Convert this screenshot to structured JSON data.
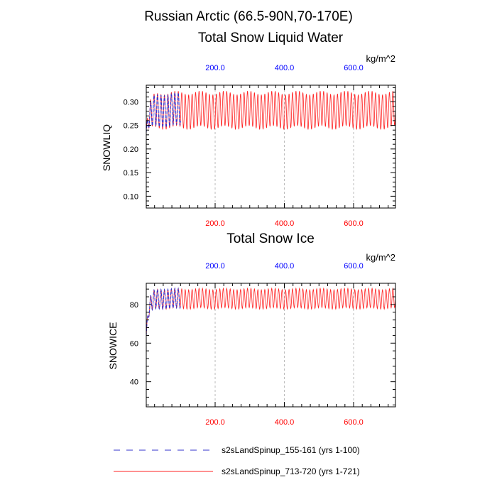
{
  "figure_title": "Russian Arctic (66.5-90N,70-170E)",
  "colors": {
    "series1": "#3333cc",
    "series2": "#ff2222",
    "top_axis": "#0000ff",
    "bottom_axis": "#ff0000",
    "grid": "#bbbbbb"
  },
  "legend": {
    "position": "bottom",
    "items": [
      {
        "label": "s2sLandSpinup_155-161 (yrs 1-100)",
        "style": "dashed",
        "color": "#3333cc"
      },
      {
        "label": "s2sLandSpinup_713-720 (yrs 1-721)",
        "style": "solid",
        "color": "#ff2222"
      }
    ]
  },
  "chart_data": [
    {
      "type": "line",
      "title": "Total Snow Liquid Water",
      "units": "kg/m^2",
      "ylabel": "SNOWLIQ",
      "xlim": [
        1,
        721
      ],
      "ylim": [
        0.075,
        0.335
      ],
      "yticks": [
        0.1,
        0.15,
        0.2,
        0.25,
        0.3
      ],
      "ytick_labels": [
        "0.10",
        "0.15",
        "0.20",
        "0.25",
        "0.30"
      ],
      "top_xticks": [
        200,
        400,
        600
      ],
      "top_xtick_labels": [
        "200.0",
        "400.0",
        "600.0"
      ],
      "bottom_xticks": [
        200,
        400,
        600
      ],
      "bottom_xtick_labels": [
        "200.0",
        "400.0",
        "600.0"
      ],
      "grid_x": true,
      "series": [
        {
          "name": "s2sLandSpinup_155-161 (yrs 1-100)",
          "x_range": [
            1,
            100
          ],
          "style": "dashed",
          "initial": 0.235,
          "spinup_rate": 0.12,
          "mean": 0.2825,
          "amplitude": 0.034,
          "cycle_years": 10,
          "mean_wobble": 0.003,
          "samples_per_cycle": 16
        },
        {
          "name": "s2sLandSpinup_713-720 (yrs 1-721)",
          "x_range": [
            1,
            721
          ],
          "style": "solid",
          "initial": 0.24,
          "spinup_rate": 0.12,
          "mean": 0.282,
          "amplitude": 0.037,
          "cycle_years": 10,
          "mean_wobble": 0.004,
          "samples_per_cycle": 16
        }
      ]
    },
    {
      "type": "line",
      "title": "Total Snow Ice",
      "units": "kg/m^2",
      "ylabel": "SNOWICE",
      "xlim": [
        1,
        721
      ],
      "ylim": [
        27,
        91
      ],
      "yticks": [
        40,
        60,
        80
      ],
      "ytick_labels": [
        "40",
        "60",
        "80"
      ],
      "top_xticks": [
        200,
        400,
        600
      ],
      "top_xtick_labels": [
        "200.0",
        "400.0",
        "600.0"
      ],
      "bottom_xticks": [
        200,
        400,
        600
      ],
      "bottom_xtick_labels": [
        "200.0",
        "400.0",
        "600.0"
      ],
      "grid_x": true,
      "series": [
        {
          "name": "s2sLandSpinup_155-161 (yrs 1-100)",
          "x_range": [
            1,
            100
          ],
          "style": "dashed",
          "initial": 64,
          "spinup_rate": 0.15,
          "mean": 83,
          "amplitude": 5,
          "cycle_years": 10,
          "mean_wobble": 0.3,
          "samples_per_cycle": 16
        },
        {
          "name": "s2sLandSpinup_713-720 (yrs 1-721)",
          "x_range": [
            1,
            721
          ],
          "style": "solid",
          "initial": 64,
          "spinup_rate": 0.15,
          "mean": 83,
          "amplitude": 5,
          "cycle_years": 10,
          "mean_wobble": 0.4,
          "samples_per_cycle": 16
        }
      ]
    }
  ]
}
